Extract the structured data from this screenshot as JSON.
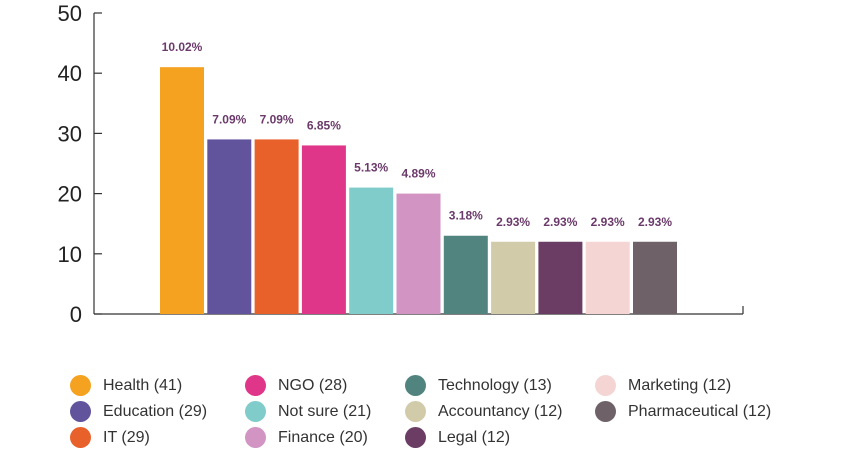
{
  "chart_data": {
    "type": "bar",
    "ylim": [
      0,
      50
    ],
    "yticks": [
      0,
      10,
      20,
      30,
      40,
      50
    ],
    "grid": false,
    "categories": [
      "Health",
      "Education",
      "IT",
      "NGO",
      "Not sure",
      "Finance",
      "Technology",
      "Accountancy",
      "Legal",
      "Marketing",
      "Pharmaceutical"
    ],
    "values": [
      41,
      29,
      29,
      28,
      21,
      20,
      13,
      12,
      12,
      12,
      12
    ],
    "data_labels": [
      "10.02%",
      "7.09%",
      "7.09%",
      "6.85%",
      "5.13%",
      "4.89%",
      "3.18%",
      "2.93%",
      "2.93%",
      "2.93%",
      "2.93%"
    ],
    "colors": [
      "#f4a21f",
      "#62549c",
      "#e8612b",
      "#e0368a",
      "#80cccb",
      "#d294c2",
      "#52847f",
      "#d1cbaa",
      "#6b3d64",
      "#f4d5d3",
      "#6e6268"
    ],
    "legend": {
      "placement": "bottom",
      "items": [
        {
          "label": "Health (41)",
          "color": "#f4a21f"
        },
        {
          "label": "Education  (29)",
          "color": "#62549c"
        },
        {
          "label": "IT (29)",
          "color": "#e8612b"
        },
        {
          "label": "NGO  (28)",
          "color": "#e0368a"
        },
        {
          "label": "Not sure (21)",
          "color": "#80cccb"
        },
        {
          "label": "Finance (20)",
          "color": "#d294c2"
        },
        {
          "label": "Technology (13)",
          "color": "#52847f"
        },
        {
          "label": "Accountancy (12)",
          "color": "#d1cbaa"
        },
        {
          "label": "Legal (12)",
          "color": "#6b3d64"
        },
        {
          "label": "Marketing (12)",
          "color": "#f4d5d3"
        },
        {
          "label": "Pharmaceutical (12)",
          "color": "#6e6268"
        }
      ]
    }
  }
}
